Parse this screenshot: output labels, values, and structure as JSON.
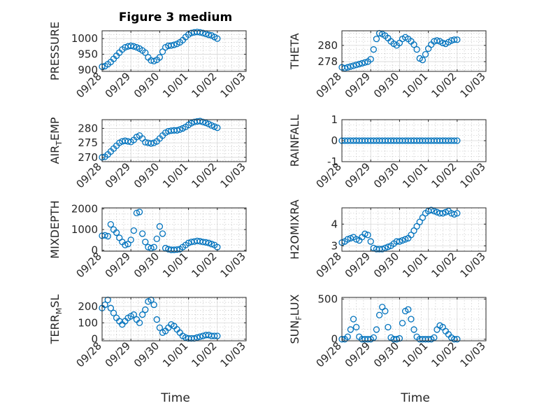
{
  "figure": {
    "title": "Figure 3 medium",
    "xlabel": "Time"
  },
  "chart_data": [
    {
      "type": "scatter",
      "ylabel": "PRESSURE",
      "ylim": [
        895,
        1025
      ],
      "yticks": [
        900,
        950,
        1000
      ],
      "xlim": [
        0,
        5
      ],
      "xticks": [
        "09/28",
        "09/29",
        "09/30",
        "10/01",
        "10/02",
        "10/03"
      ],
      "x": [
        0,
        0.1,
        0.2,
        0.3,
        0.4,
        0.5,
        0.6,
        0.7,
        0.8,
        0.9,
        1.0,
        1.1,
        1.2,
        1.3,
        1.4,
        1.5,
        1.6,
        1.7,
        1.8,
        1.9,
        2.0,
        2.1,
        2.2,
        2.3,
        2.4,
        2.5,
        2.6,
        2.7,
        2.8,
        2.9,
        3.0,
        3.1,
        3.2,
        3.3,
        3.4,
        3.5,
        3.6,
        3.7,
        3.8,
        3.9,
        4.0
      ],
      "y": [
        910,
        912,
        918,
        925,
        935,
        945,
        955,
        965,
        972,
        975,
        977,
        975,
        972,
        968,
        962,
        955,
        940,
        930,
        928,
        932,
        940,
        958,
        972,
        977,
        978,
        980,
        983,
        988,
        995,
        1005,
        1013,
        1018,
        1020,
        1021,
        1020,
        1018,
        1015,
        1012,
        1010,
        1005,
        1000
      ]
    },
    {
      "type": "scatter",
      "ylabel": "THETA",
      "ylim": [
        276.8,
        281.8
      ],
      "yticks": [
        278,
        280
      ],
      "xlim": [
        0,
        5
      ],
      "xticks": [
        "09/28",
        "09/29",
        "09/30",
        "10/01",
        "10/02",
        "10/03"
      ],
      "x": [
        0,
        0.1,
        0.2,
        0.3,
        0.4,
        0.5,
        0.6,
        0.7,
        0.8,
        0.9,
        1.0,
        1.1,
        1.2,
        1.3,
        1.4,
        1.5,
        1.6,
        1.7,
        1.8,
        1.9,
        2.0,
        2.1,
        2.2,
        2.3,
        2.4,
        2.5,
        2.6,
        2.7,
        2.8,
        2.9,
        3.0,
        3.1,
        3.2,
        3.3,
        3.4,
        3.5,
        3.6,
        3.7,
        3.8,
        3.9,
        4.0
      ],
      "y": [
        277.3,
        277.2,
        277.3,
        277.4,
        277.5,
        277.6,
        277.7,
        277.8,
        277.9,
        278.0,
        278.3,
        279.5,
        280.8,
        281.5,
        281.4,
        281.2,
        280.9,
        280.5,
        280.2,
        280.0,
        280.3,
        280.8,
        281.0,
        280.8,
        280.5,
        280.1,
        279.5,
        278.4,
        278.2,
        278.9,
        279.6,
        280.1,
        280.5,
        280.6,
        280.5,
        280.3,
        280.2,
        280.4,
        280.6,
        280.7,
        280.7
      ]
    },
    {
      "type": "scatter",
      "ylabel": "AIR_TEMP",
      "ylim": [
        268.5,
        283
      ],
      "yticks": [
        270,
        275,
        280
      ],
      "xlim": [
        0,
        5
      ],
      "xticks": [
        "09/28",
        "09/29",
        "09/30",
        "10/01",
        "10/02",
        "10/03"
      ],
      "x": [
        0,
        0.1,
        0.2,
        0.3,
        0.4,
        0.5,
        0.6,
        0.7,
        0.8,
        0.9,
        1.0,
        1.1,
        1.2,
        1.3,
        1.4,
        1.5,
        1.6,
        1.7,
        1.8,
        1.9,
        2.0,
        2.1,
        2.2,
        2.3,
        2.4,
        2.5,
        2.6,
        2.7,
        2.8,
        2.9,
        3.0,
        3.1,
        3.2,
        3.3,
        3.4,
        3.5,
        3.6,
        3.7,
        3.8,
        3.9,
        4.0
      ],
      "y": [
        270,
        270.2,
        271,
        272,
        273,
        274,
        275,
        275.5,
        275.7,
        275.5,
        275.3,
        276,
        277,
        277.5,
        276.5,
        275.2,
        275,
        274.8,
        275,
        275.5,
        276.5,
        277.5,
        278.5,
        279,
        279.2,
        279.3,
        279.3,
        279.6,
        280,
        280.5,
        281.2,
        281.8,
        282.2,
        282.4,
        282.5,
        282.2,
        281.9,
        281.5,
        281,
        280.6,
        280.2
      ]
    },
    {
      "type": "scatter",
      "ylabel": "RAINFALL",
      "ylim": [
        -1,
        1
      ],
      "yticks": [
        -1,
        0,
        1
      ],
      "xlim": [
        0,
        5
      ],
      "xticks": [
        "09/28",
        "09/29",
        "09/30",
        "10/01",
        "10/02",
        "10/03"
      ],
      "x": [
        0,
        0.1,
        0.2,
        0.3,
        0.4,
        0.5,
        0.6,
        0.7,
        0.8,
        0.9,
        1.0,
        1.1,
        1.2,
        1.3,
        1.4,
        1.5,
        1.6,
        1.7,
        1.8,
        1.9,
        2.0,
        2.1,
        2.2,
        2.3,
        2.4,
        2.5,
        2.6,
        2.7,
        2.8,
        2.9,
        3.0,
        3.1,
        3.2,
        3.3,
        3.4,
        3.5,
        3.6,
        3.7,
        3.8,
        3.9,
        4.0
      ],
      "y": [
        0,
        0,
        0,
        0,
        0,
        0,
        0,
        0,
        0,
        0,
        0,
        0,
        0,
        0,
        0,
        0,
        0,
        0,
        0,
        0,
        0,
        0,
        0,
        0,
        0,
        0,
        0,
        0,
        0,
        0,
        0,
        0,
        0,
        0,
        0,
        0,
        0,
        0,
        0,
        0,
        0
      ]
    },
    {
      "type": "scatter",
      "ylabel": "MIXDEPTH",
      "ylim": [
        -50,
        2050
      ],
      "yticks": [
        0,
        1000,
        2000
      ],
      "xlim": [
        0,
        5
      ],
      "xticks": [
        "09/28",
        "09/29",
        "09/30",
        "10/01",
        "10/02",
        "10/03"
      ],
      "x": [
        0,
        0.1,
        0.2,
        0.3,
        0.4,
        0.5,
        0.6,
        0.7,
        0.8,
        0.9,
        1.0,
        1.1,
        1.2,
        1.3,
        1.4,
        1.5,
        1.6,
        1.7,
        1.8,
        1.9,
        2.0,
        2.1,
        2.2,
        2.3,
        2.4,
        2.5,
        2.6,
        2.7,
        2.8,
        2.9,
        3.0,
        3.1,
        3.2,
        3.3,
        3.4,
        3.5,
        3.6,
        3.7,
        3.8,
        3.9,
        4.0
      ],
      "y": [
        700,
        720,
        680,
        1250,
        1000,
        850,
        600,
        400,
        250,
        300,
        500,
        950,
        1800,
        1850,
        800,
        400,
        150,
        100,
        150,
        550,
        1150,
        800,
        100,
        50,
        20,
        20,
        30,
        50,
        150,
        250,
        350,
        400,
        420,
        450,
        430,
        400,
        380,
        350,
        300,
        250,
        150
      ]
    },
    {
      "type": "scatter",
      "ylabel": "H2OMIXRA",
      "ylim": [
        2.75,
        4.75
      ],
      "yticks": [
        3,
        4
      ],
      "xlim": [
        0,
        5
      ],
      "xticks": [
        "09/28",
        "09/29",
        "09/30",
        "10/01",
        "10/02",
        "10/03"
      ],
      "x": [
        0,
        0.1,
        0.2,
        0.3,
        0.4,
        0.5,
        0.6,
        0.7,
        0.8,
        0.9,
        1.0,
        1.1,
        1.2,
        1.3,
        1.4,
        1.5,
        1.6,
        1.7,
        1.8,
        1.9,
        2.0,
        2.1,
        2.2,
        2.3,
        2.4,
        2.5,
        2.6,
        2.7,
        2.8,
        2.9,
        3.0,
        3.1,
        3.2,
        3.3,
        3.4,
        3.5,
        3.6,
        3.7,
        3.8,
        3.9,
        4.0
      ],
      "y": [
        3.15,
        3.2,
        3.3,
        3.35,
        3.4,
        3.3,
        3.25,
        3.4,
        3.55,
        3.5,
        3.2,
        2.9,
        2.85,
        2.85,
        2.85,
        2.9,
        2.95,
        3.0,
        3.1,
        3.2,
        3.2,
        3.25,
        3.3,
        3.35,
        3.5,
        3.7,
        3.9,
        4.1,
        4.3,
        4.5,
        4.6,
        4.65,
        4.6,
        4.55,
        4.5,
        4.5,
        4.55,
        4.6,
        4.5,
        4.45,
        4.5
      ]
    },
    {
      "type": "scatter",
      "ylabel": "TERR_MSL",
      "ylim": [
        -10,
        255
      ],
      "yticks": [
        0,
        100,
        200
      ],
      "xlim": [
        0,
        5
      ],
      "xticks": [
        "09/28",
        "09/29",
        "09/30",
        "10/01",
        "10/02",
        "10/03"
      ],
      "x": [
        0,
        0.1,
        0.2,
        0.3,
        0.4,
        0.5,
        0.6,
        0.7,
        0.8,
        0.9,
        1.0,
        1.1,
        1.2,
        1.3,
        1.4,
        1.5,
        1.6,
        1.7,
        1.8,
        1.9,
        2.0,
        2.1,
        2.2,
        2.3,
        2.4,
        2.5,
        2.6,
        2.7,
        2.8,
        2.9,
        3.0,
        3.1,
        3.2,
        3.3,
        3.4,
        3.5,
        3.6,
        3.7,
        3.8,
        3.9,
        4.0
      ],
      "y": [
        190,
        210,
        240,
        190,
        160,
        130,
        110,
        90,
        110,
        130,
        140,
        150,
        120,
        100,
        150,
        180,
        230,
        240,
        210,
        120,
        70,
        40,
        50,
        70,
        90,
        80,
        60,
        40,
        20,
        10,
        5,
        5,
        5,
        10,
        15,
        20,
        25,
        25,
        20,
        20,
        20
      ]
    },
    {
      "type": "scatter",
      "ylabel": "SUN_FLUX",
      "ylim": [
        -20,
        520
      ],
      "yticks": [
        0,
        500
      ],
      "xlim": [
        0,
        5
      ],
      "xticks": [
        "09/28",
        "09/29",
        "09/30",
        "10/01",
        "10/02",
        "10/03"
      ],
      "x": [
        0,
        0.1,
        0.2,
        0.3,
        0.4,
        0.5,
        0.6,
        0.7,
        0.8,
        0.9,
        1.0,
        1.1,
        1.2,
        1.3,
        1.4,
        1.5,
        1.6,
        1.7,
        1.8,
        1.9,
        2.0,
        2.1,
        2.2,
        2.3,
        2.4,
        2.5,
        2.6,
        2.7,
        2.8,
        2.9,
        3.0,
        3.1,
        3.2,
        3.3,
        3.4,
        3.5,
        3.6,
        3.7,
        3.8,
        3.9,
        4.0
      ],
      "y": [
        0,
        0,
        30,
        120,
        250,
        150,
        30,
        0,
        0,
        0,
        0,
        20,
        120,
        300,
        400,
        350,
        150,
        20,
        0,
        0,
        10,
        200,
        350,
        370,
        250,
        120,
        30,
        0,
        0,
        0,
        0,
        0,
        20,
        120,
        170,
        150,
        100,
        60,
        20,
        0,
        0
      ]
    }
  ]
}
